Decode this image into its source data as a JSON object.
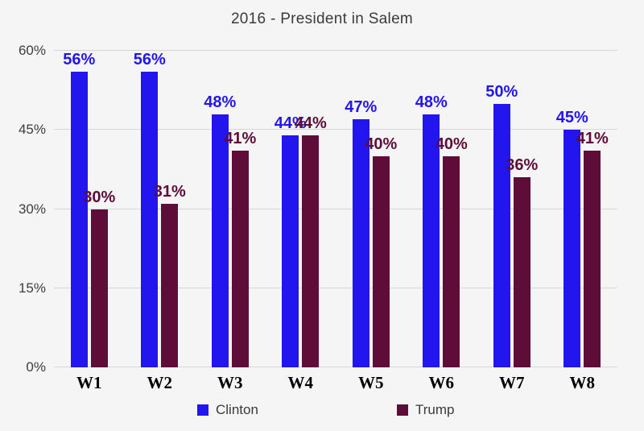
{
  "chart_data": {
    "type": "bar",
    "title": "2016 - President in Salem",
    "categories": [
      "W1",
      "W2",
      "W3",
      "W4",
      "W5",
      "W6",
      "W7",
      "W8"
    ],
    "series": [
      {
        "name": "Clinton",
        "color": "#2315ee",
        "values": [
          56,
          56,
          48,
          44,
          47,
          48,
          50,
          45
        ]
      },
      {
        "name": "Trump",
        "color": "#5e0d38",
        "values": [
          30,
          31,
          41,
          44,
          40,
          40,
          36,
          41
        ]
      }
    ],
    "data_labels": true,
    "value_suffix": "%",
    "xlabel": "",
    "ylabel": "",
    "ylim": [
      0,
      60
    ],
    "yticks": [
      0,
      15,
      30,
      45,
      60
    ],
    "ytick_labels": [
      "0%",
      "15%",
      "30%",
      "45%",
      "60%"
    ],
    "grid": true,
    "legend_position": "bottom"
  },
  "colors": {
    "background": "#f5f5f6",
    "gridline": "#d7d7d9",
    "axis_text": "#3d3d3d",
    "title_text": "#3b3b3b",
    "xtick_text": "#000000",
    "legend_text": "#3a3a3a"
  }
}
